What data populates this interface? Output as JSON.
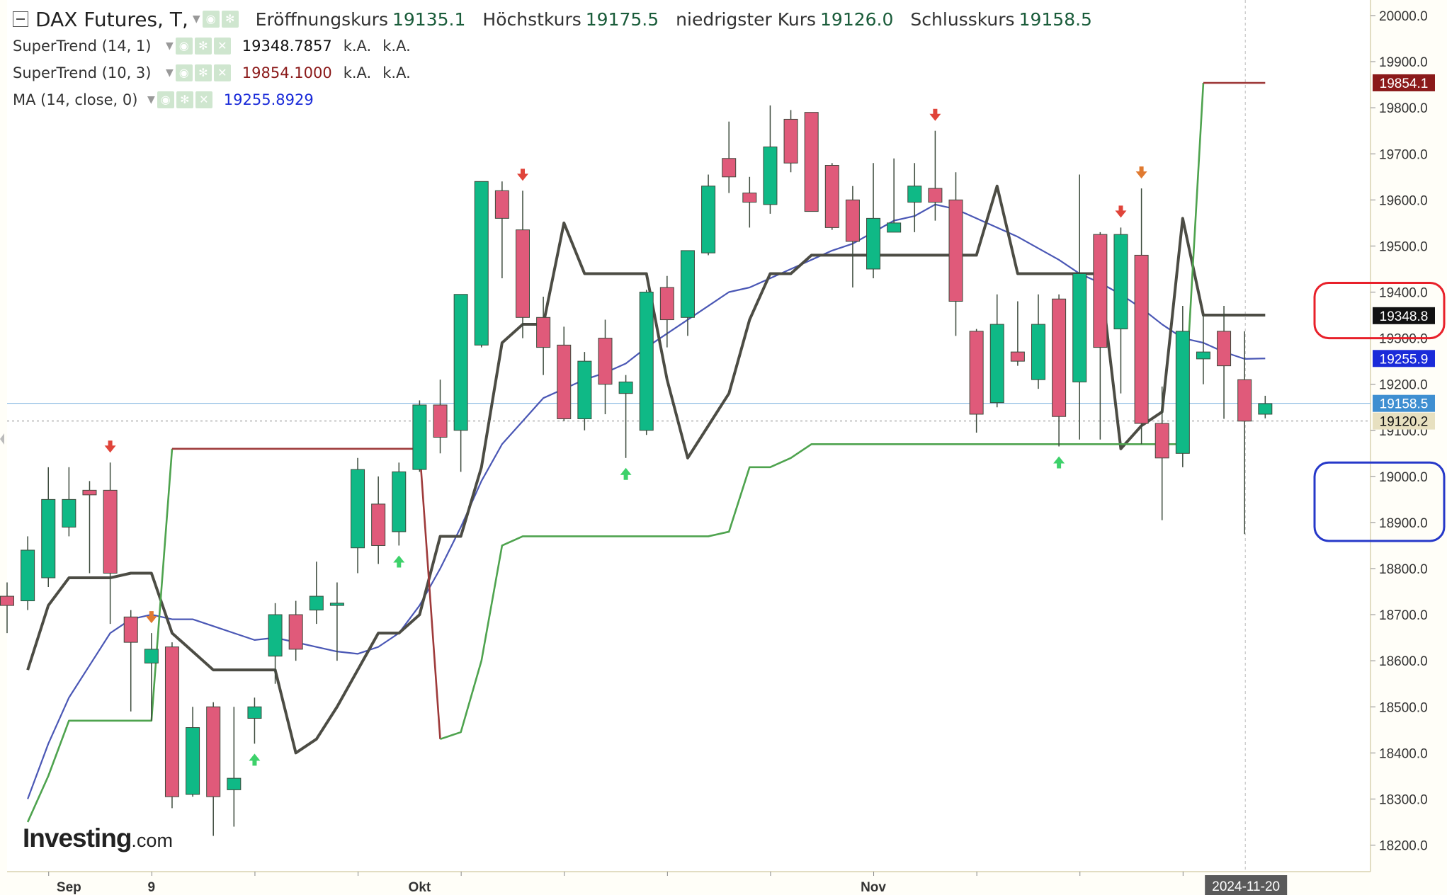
{
  "header": {
    "title": "DAX Futures, T,",
    "ohlc": [
      {
        "label": "Eröffnungskurs",
        "value": "19135.1"
      },
      {
        "label": "Höchstkurs",
        "value": "19175.5"
      },
      {
        "label": "niedrigster Kurs",
        "value": "19126.0"
      },
      {
        "label": "Schlusskurs",
        "value": "19158.5"
      }
    ]
  },
  "indicators": [
    {
      "name": "SuperTrend (14, 1)",
      "value": "19348.7857",
      "value_color": "#111111",
      "extra1": "k.A.",
      "extra2": "k.A."
    },
    {
      "name": "SuperTrend (10, 3)",
      "value": "19854.1000",
      "value_color": "#8b1a1a",
      "extra1": "k.A.",
      "extra2": "k.A."
    },
    {
      "name": "MA (14, close, 0)",
      "value": "19255.8929",
      "value_color": "#1a2bd9"
    }
  ],
  "watermark": {
    "brand": "Investing",
    "suffix": ".com"
  },
  "colors": {
    "up": "#0fb986",
    "down": "#e05a7a",
    "ma": "#4a57b5",
    "st_slow_up": "#4ea34e",
    "st_slow_down": "#9e3a3a",
    "st_fast": "#4c4c44",
    "last": "#3f8fd1",
    "annot_red": "#e8202a",
    "annot_blue": "#2638c9"
  },
  "chart_data": {
    "type": "candlestick",
    "title": "DAX Futures, T",
    "ylim": [
      18115,
      20040
    ],
    "yticks": [
      "18200.0",
      "18300.0",
      "18400.0",
      "18500.0",
      "18600.0",
      "18700.0",
      "18800.0",
      "18900.0",
      "19000.0",
      "19100.0",
      "19200.0",
      "19300.0",
      "19400.0",
      "19500.0",
      "19600.0",
      "19700.0",
      "19800.0",
      "19900.0",
      "20000.0"
    ],
    "xlabels": [
      "Sep",
      "9",
      "Okt",
      "Nov",
      "2024-11-20"
    ],
    "candles": [
      {
        "o": 18740,
        "h": 18770,
        "l": 18660,
        "c": 18720
      },
      {
        "o": 18730,
        "h": 18870,
        "l": 18710,
        "c": 18840
      },
      {
        "o": 18780,
        "h": 19020,
        "l": 18760,
        "c": 18950
      },
      {
        "o": 18890,
        "h": 19020,
        "l": 18870,
        "c": 18950
      },
      {
        "o": 18970,
        "h": 18990,
        "l": 18790,
        "c": 18960
      },
      {
        "o": 18970,
        "h": 19030,
        "l": 18680,
        "c": 18790
      },
      {
        "o": 18695,
        "h": 18710,
        "l": 18490,
        "c": 18640
      },
      {
        "o": 18595,
        "h": 18660,
        "l": 18470,
        "c": 18625
      },
      {
        "o": 18630,
        "h": 18640,
        "l": 18280,
        "c": 18305
      },
      {
        "o": 18310,
        "h": 18500,
        "l": 18305,
        "c": 18455
      },
      {
        "o": 18500,
        "h": 18510,
        "l": 18220,
        "c": 18305
      },
      {
        "o": 18320,
        "h": 18500,
        "l": 18240,
        "c": 18345
      },
      {
        "o": 18475,
        "h": 18520,
        "l": 18420,
        "c": 18500
      },
      {
        "o": 18610,
        "h": 18725,
        "l": 18550,
        "c": 18700
      },
      {
        "o": 18700,
        "h": 18730,
        "l": 18600,
        "c": 18625
      },
      {
        "o": 18710,
        "h": 18815,
        "l": 18680,
        "c": 18740
      },
      {
        "o": 18720,
        "h": 18770,
        "l": 18600,
        "c": 18725
      },
      {
        "o": 18845,
        "h": 19040,
        "l": 18790,
        "c": 19015
      },
      {
        "o": 18940,
        "h": 19000,
        "l": 18810,
        "c": 18850
      },
      {
        "o": 18880,
        "h": 19030,
        "l": 18850,
        "c": 19010
      },
      {
        "o": 19015,
        "h": 19165,
        "l": 19010,
        "c": 19155
      },
      {
        "o": 19155,
        "h": 19210,
        "l": 19050,
        "c": 19085
      },
      {
        "o": 19100,
        "h": 19395,
        "l": 19010,
        "c": 19395
      },
      {
        "o": 19285,
        "h": 19630,
        "l": 19280,
        "c": 19640
      },
      {
        "o": 19620,
        "h": 19640,
        "l": 19430,
        "c": 19560
      },
      {
        "o": 19535,
        "h": 19620,
        "l": 19300,
        "c": 19345
      },
      {
        "o": 19345,
        "h": 19390,
        "l": 19220,
        "c": 19280
      },
      {
        "o": 19285,
        "h": 19325,
        "l": 19120,
        "c": 19125
      },
      {
        "o": 19125,
        "h": 19270,
        "l": 19100,
        "c": 19250
      },
      {
        "o": 19300,
        "h": 19340,
        "l": 19135,
        "c": 19200
      },
      {
        "o": 19180,
        "h": 19220,
        "l": 19040,
        "c": 19205
      },
      {
        "o": 19100,
        "h": 19405,
        "l": 19090,
        "c": 19400
      },
      {
        "o": 19410,
        "h": 19435,
        "l": 19280,
        "c": 19340
      },
      {
        "o": 19345,
        "h": 19490,
        "l": 19305,
        "c": 19490
      },
      {
        "o": 19485,
        "h": 19655,
        "l": 19480,
        "c": 19630
      },
      {
        "o": 19690,
        "h": 19770,
        "l": 19615,
        "c": 19650
      },
      {
        "o": 19615,
        "h": 19650,
        "l": 19540,
        "c": 19595
      },
      {
        "o": 19590,
        "h": 19805,
        "l": 19570,
        "c": 19715
      },
      {
        "o": 19775,
        "h": 19795,
        "l": 19660,
        "c": 19680
      },
      {
        "o": 19790,
        "h": 19790,
        "l": 19575,
        "c": 19575
      },
      {
        "o": 19675,
        "h": 19680,
        "l": 19535,
        "c": 19540
      },
      {
        "o": 19600,
        "h": 19630,
        "l": 19410,
        "c": 19510
      },
      {
        "o": 19450,
        "h": 19680,
        "l": 19430,
        "c": 19560
      },
      {
        "o": 19530,
        "h": 19690,
        "l": 19535,
        "c": 19550
      },
      {
        "o": 19595,
        "h": 19680,
        "l": 19530,
        "c": 19630
      },
      {
        "o": 19625,
        "h": 19750,
        "l": 19555,
        "c": 19595
      },
      {
        "o": 19600,
        "h": 19660,
        "l": 19305,
        "c": 19380
      },
      {
        "o": 19315,
        "h": 19320,
        "l": 19095,
        "c": 19135
      },
      {
        "o": 19160,
        "h": 19395,
        "l": 19150,
        "c": 19330
      },
      {
        "o": 19270,
        "h": 19380,
        "l": 19240,
        "c": 19250
      },
      {
        "o": 19210,
        "h": 19395,
        "l": 19190,
        "c": 19330
      },
      {
        "o": 19385,
        "h": 19395,
        "l": 19065,
        "c": 19130
      },
      {
        "o": 19205,
        "h": 19655,
        "l": 19080,
        "c": 19440
      },
      {
        "o": 19525,
        "h": 19530,
        "l": 19080,
        "c": 19280
      },
      {
        "o": 19320,
        "h": 19540,
        "l": 19180,
        "c": 19525
      },
      {
        "o": 19480,
        "h": 19625,
        "l": 19070,
        "c": 19115
      },
      {
        "o": 19115,
        "h": 19195,
        "l": 18905,
        "c": 19040
      },
      {
        "o": 19050,
        "h": 19370,
        "l": 19020,
        "c": 19315
      },
      {
        "o": 19255,
        "h": 19350,
        "l": 19200,
        "c": 19270
      },
      {
        "o": 19315,
        "h": 19370,
        "l": 19125,
        "c": 19240
      },
      {
        "o": 19210,
        "h": 19315,
        "l": 18875,
        "c": 19120
      },
      {
        "o": 19135,
        "h": 19175,
        "l": 19126,
        "c": 19158
      }
    ],
    "series": [
      {
        "name": "MA (14, close, 0)",
        "values": [
          null,
          18300,
          18420,
          18520,
          18590,
          18660,
          18690,
          18700,
          18690,
          18690,
          18675,
          18660,
          18645,
          18650,
          18640,
          18630,
          18620,
          18615,
          18630,
          18660,
          18720,
          18800,
          18890,
          18990,
          19070,
          19120,
          19170,
          19190,
          19210,
          19225,
          19245,
          19280,
          19310,
          19340,
          19370,
          19400,
          19410,
          19430,
          19450,
          19470,
          19490,
          19505,
          19530,
          19555,
          19565,
          19590,
          19580,
          19560,
          19540,
          19520,
          19495,
          19470,
          19440,
          19420,
          19395,
          19365,
          19330,
          19300,
          19290,
          19270,
          19255,
          19256
        ]
      },
      {
        "name": "SuperTrend (14, 1)",
        "values": [
          null,
          18580,
          18720,
          18780,
          18780,
          18780,
          18790,
          18790,
          18660,
          18620,
          18580,
          18580,
          18580,
          18580,
          18400,
          18430,
          18500,
          18580,
          18660,
          18660,
          18700,
          18870,
          18870,
          19020,
          19290,
          19330,
          19330,
          19550,
          19440,
          19440,
          19440,
          19440,
          19210,
          19040,
          19110,
          19180,
          19340,
          19440,
          19440,
          19480,
          19480,
          19480,
          19480,
          19480,
          19480,
          19480,
          19480,
          19480,
          19630,
          19440,
          19440,
          19440,
          19440,
          19440,
          19060,
          19110,
          19140,
          19560,
          19350,
          19350,
          19350,
          19350
        ]
      },
      {
        "name": "SuperTrend (10, 3)",
        "values": [
          null,
          18250,
          18350,
          18470,
          18470,
          18470,
          18470,
          18470,
          19060,
          19060,
          19060,
          19060,
          19060,
          19060,
          19060,
          19060,
          19060,
          19060,
          19060,
          19060,
          19060,
          18430,
          18445,
          18600,
          18850,
          18870,
          18870,
          18870,
          18870,
          18870,
          18870,
          18870,
          18870,
          18870,
          18870,
          18880,
          19020,
          19020,
          19040,
          19070,
          19070,
          19070,
          19070,
          19070,
          19070,
          19070,
          19070,
          19070,
          19070,
          19070,
          19070,
          19070,
          19070,
          19070,
          19070,
          19070,
          19070,
          19070,
          19854,
          19854,
          19854,
          19854
        ]
      }
    ],
    "signals": [
      {
        "index": 5,
        "type": "sell"
      },
      {
        "index": 7,
        "type": "sell"
      },
      {
        "index": 12,
        "type": "buy"
      },
      {
        "index": 19,
        "type": "buy"
      },
      {
        "index": 25,
        "type": "sell"
      },
      {
        "index": 30,
        "type": "buy"
      },
      {
        "index": 45,
        "type": "sell"
      },
      {
        "index": 51,
        "type": "buy"
      },
      {
        "index": 54,
        "type": "sell"
      },
      {
        "index": 55,
        "type": "sell"
      }
    ],
    "markers": [
      {
        "label": "19854.1",
        "value": 19854.1,
        "bg": "#8b1a1a",
        "color": "#ffffff"
      },
      {
        "label": "19348.8",
        "value": 19348.8,
        "bg": "#111111",
        "color": "#ffffff"
      },
      {
        "label": "19255.9",
        "value": 19255.9,
        "bg": "#1a2bd9",
        "color": "#ffffff"
      },
      {
        "label": "19158.5",
        "value": 19158.5,
        "bg": "#3f8fd1",
        "color": "#ffffff"
      },
      {
        "label": "19120.2",
        "value": 19120.2,
        "bg": "#e7e0c0",
        "color": "#111111"
      }
    ],
    "annotations": [
      {
        "color": "red",
        "ylo": 19300,
        "yhi": 19420
      },
      {
        "color": "blue",
        "ylo": 18860,
        "yhi": 19030
      }
    ]
  }
}
